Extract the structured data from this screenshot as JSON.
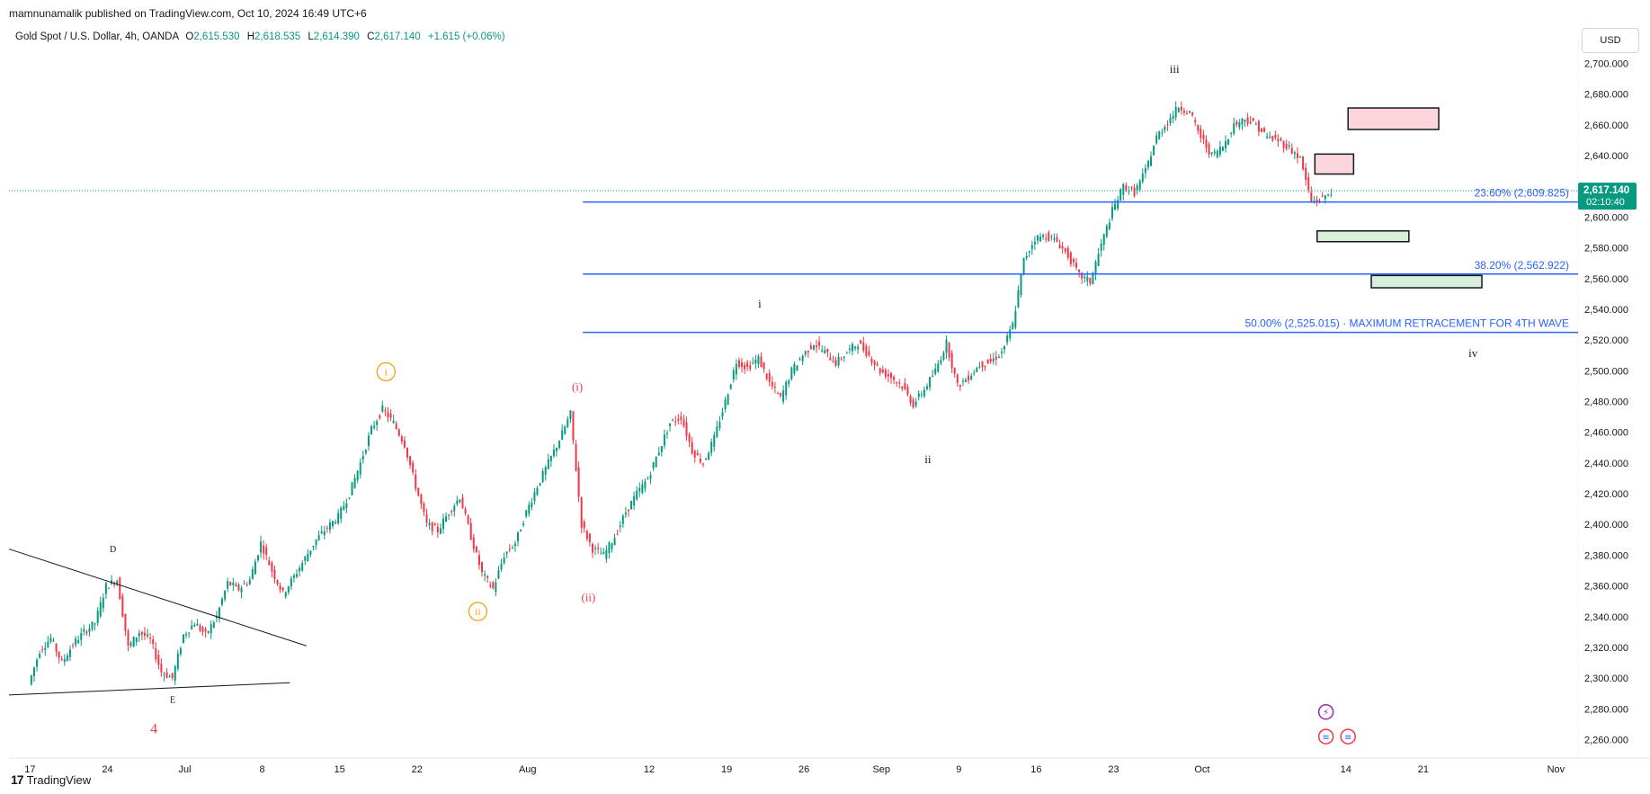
{
  "publisher": "mamnunamalik published on TradingView.com, Oct 10, 2024 16:49 UTC+6",
  "legend": {
    "symbol": "Gold Spot / U.S. Dollar, 4h, OANDA",
    "o_label": "O",
    "o": "2,615.530",
    "h_label": "H",
    "h": "2,618.535",
    "l_label": "L",
    "l": "2,614.390",
    "c_label": "C",
    "c": "2,617.140",
    "change": "+1.615 (+0.06%)"
  },
  "currency_button": "USD",
  "footer_brand": "TradingView",
  "footer_logo_mark": "17",
  "chart_data": {
    "type": "candlestick",
    "colors": {
      "up": "#089981",
      "down": "#f23645",
      "fib": "#2962ff",
      "price_label_bg": "#089981"
    },
    "y_ticks": [
      2260,
      2280,
      2300,
      2320,
      2340,
      2360,
      2380,
      2400,
      2420,
      2440,
      2460,
      2480,
      2500,
      2520,
      2540,
      2560,
      2580,
      2600,
      2620,
      2640,
      2660,
      2680,
      2700
    ],
    "y_tick_labels": [
      "2,260.000",
      "2,280.000",
      "2,300.000",
      "2,320.000",
      "2,340.000",
      "2,360.000",
      "2,380.000",
      "2,400.000",
      "2,420.000",
      "2,440.000",
      "2,460.000",
      "2,480.000",
      "2,500.000",
      "2,520.000",
      "2,540.000",
      "2,560.000",
      "2,580.000",
      "2,600.000",
      "2,620.000",
      "2,640.000",
      "2,660.000",
      "2,680.000",
      "2,700.000"
    ],
    "ylim": [
      2248,
      2712
    ],
    "x_ticks": [
      {
        "day": 0,
        "label": "17"
      },
      {
        "day": 7,
        "label": "24"
      },
      {
        "day": 14,
        "label": "Jul"
      },
      {
        "day": 21,
        "label": "8"
      },
      {
        "day": 28,
        "label": "15"
      },
      {
        "day": 35,
        "label": "22"
      },
      {
        "day": 45,
        "label": "Aug"
      },
      {
        "day": 56,
        "label": "12"
      },
      {
        "day": 63,
        "label": "19"
      },
      {
        "day": 70,
        "label": "26"
      },
      {
        "day": 77,
        "label": "Sep"
      },
      {
        "day": 84,
        "label": "9"
      },
      {
        "day": 91,
        "label": "16"
      },
      {
        "day": 98,
        "label": "23"
      },
      {
        "day": 106,
        "label": "Oct"
      },
      {
        "day": 119,
        "label": "14"
      },
      {
        "day": 126,
        "label": "21"
      },
      {
        "day": 138,
        "label": "Nov"
      }
    ],
    "xlim_days": [
      -1.9,
      140
    ],
    "current_price": {
      "value": 2617.14,
      "label": "2,617.140",
      "countdown": "02:10:40"
    },
    "path_points": [
      [
        0,
        2296
      ],
      [
        1,
        2318
      ],
      [
        2,
        2326
      ],
      [
        3,
        2310
      ],
      [
        4,
        2322
      ],
      [
        5,
        2330
      ],
      [
        6,
        2336
      ],
      [
        7,
        2360
      ],
      [
        8,
        2364
      ],
      [
        9,
        2320
      ],
      [
        10,
        2330
      ],
      [
        11,
        2325
      ],
      [
        12,
        2304
      ],
      [
        13,
        2300
      ],
      [
        14,
        2328
      ],
      [
        15,
        2336
      ],
      [
        16,
        2328
      ],
      [
        17,
        2340
      ],
      [
        18,
        2362
      ],
      [
        19,
        2358
      ],
      [
        20,
        2364
      ],
      [
        21,
        2388
      ],
      [
        22,
        2370
      ],
      [
        23,
        2355
      ],
      [
        24,
        2366
      ],
      [
        25,
        2378
      ],
      [
        26,
        2390
      ],
      [
        27,
        2398
      ],
      [
        28,
        2405
      ],
      [
        29,
        2420
      ],
      [
        30,
        2440
      ],
      [
        31,
        2462
      ],
      [
        32,
        2475
      ],
      [
        33,
        2466
      ],
      [
        34,
        2452
      ],
      [
        35,
        2425
      ],
      [
        36,
        2400
      ],
      [
        37,
        2396
      ],
      [
        38,
        2408
      ],
      [
        39,
        2418
      ],
      [
        40,
        2392
      ],
      [
        41,
        2368
      ],
      [
        42,
        2358
      ],
      [
        43,
        2380
      ],
      [
        44,
        2388
      ],
      [
        45,
        2408
      ],
      [
        46,
        2425
      ],
      [
        47,
        2440
      ],
      [
        48,
        2455
      ],
      [
        49,
        2472
      ],
      [
        50,
        2400
      ],
      [
        51,
        2384
      ],
      [
        52,
        2380
      ],
      [
        53,
        2392
      ],
      [
        54,
        2408
      ],
      [
        55,
        2420
      ],
      [
        56,
        2430
      ],
      [
        57,
        2448
      ],
      [
        58,
        2466
      ],
      [
        59,
        2470
      ],
      [
        60,
        2448
      ],
      [
        61,
        2440
      ],
      [
        62,
        2456
      ],
      [
        63,
        2480
      ],
      [
        64,
        2506
      ],
      [
        65,
        2502
      ],
      [
        66,
        2508
      ],
      [
        67,
        2492
      ],
      [
        68,
        2482
      ],
      [
        69,
        2500
      ],
      [
        70,
        2510
      ],
      [
        71,
        2518
      ],
      [
        72,
        2512
      ],
      [
        73,
        2505
      ],
      [
        74,
        2512
      ],
      [
        75,
        2518
      ],
      [
        76,
        2510
      ],
      [
        77,
        2500
      ],
      [
        78,
        2496
      ],
      [
        79,
        2490
      ],
      [
        80,
        2478
      ],
      [
        81,
        2488
      ],
      [
        82,
        2500
      ],
      [
        83,
        2518
      ],
      [
        84,
        2490
      ],
      [
        85,
        2496
      ],
      [
        86,
        2504
      ],
      [
        87,
        2506
      ],
      [
        88,
        2512
      ],
      [
        89,
        2530
      ],
      [
        90,
        2572
      ],
      [
        91,
        2586
      ],
      [
        92,
        2588
      ],
      [
        93,
        2584
      ],
      [
        94,
        2575
      ],
      [
        95,
        2562
      ],
      [
        96,
        2558
      ],
      [
        97,
        2582
      ],
      [
        98,
        2604
      ],
      [
        99,
        2620
      ],
      [
        100,
        2616
      ],
      [
        101,
        2630
      ],
      [
        102,
        2652
      ],
      [
        103,
        2662
      ],
      [
        104,
        2672
      ],
      [
        105,
        2668
      ],
      [
        106,
        2652
      ],
      [
        107,
        2640
      ],
      [
        108,
        2646
      ],
      [
        109,
        2660
      ],
      [
        110,
        2664
      ],
      [
        111,
        2660
      ],
      [
        112,
        2652
      ],
      [
        113,
        2650
      ],
      [
        114,
        2645
      ],
      [
        115,
        2638
      ],
      [
        116,
        2610
      ],
      [
        117,
        2612
      ],
      [
        117.8,
        2617
      ]
    ],
    "fib_levels": [
      {
        "value": 2609.825,
        "label": "23.60% (2,609.825)",
        "start_day": 50
      },
      {
        "value": 2562.922,
        "label": "38.20% (2,562.922)",
        "start_day": 50
      },
      {
        "value": 2525.015,
        "label": "50.00% (2,525.015) · MAXIMUM RETRACEMENT FOR 4TH WAVE",
        "start_day": 50
      }
    ],
    "trendlines": [
      {
        "name": "triangle-upper-line",
        "p1": [
          -1.9,
          2384
        ],
        "p2": [
          25,
          2321
        ]
      },
      {
        "name": "triangle-lower-line",
        "p1": [
          -1.9,
          2289
        ],
        "p2": [
          23.5,
          2297
        ]
      }
    ],
    "zones": [
      {
        "name": "resistance-zone-upper",
        "kind": "resistance",
        "x1": 119.2,
        "x2": 127.4,
        "y1": 2671,
        "y2": 2657
      },
      {
        "name": "resistance-zone-lower",
        "kind": "resistance",
        "x1": 116.2,
        "x2": 119.7,
        "y1": 2641,
        "y2": 2628
      },
      {
        "name": "support-zone-upper",
        "kind": "support",
        "x1": 116.4,
        "x2": 124.7,
        "y1": 2591,
        "y2": 2584
      },
      {
        "name": "support-zone-lower",
        "kind": "support",
        "x1": 121.3,
        "x2": 131.3,
        "y1": 2562,
        "y2": 2554
      }
    ],
    "wave_labels": [
      {
        "text": "D",
        "day": 7.5,
        "price": 2382,
        "style": "plain-black",
        "size": 10
      },
      {
        "text": "E",
        "day": 12.9,
        "price": 2284,
        "style": "plain-black",
        "size": 10
      },
      {
        "text": "4",
        "day": 11.2,
        "price": 2264,
        "style": "plain-red",
        "size": 16
      },
      {
        "text": "i",
        "day": 32.2,
        "price": 2497,
        "style": "circled-orange",
        "size": 12
      },
      {
        "text": "ii",
        "day": 40.5,
        "price": 2341,
        "style": "circled-orange",
        "size": 12
      },
      {
        "text": "(i)",
        "day": 49.5,
        "price": 2487,
        "style": "paren-red",
        "size": 13
      },
      {
        "text": "(ii)",
        "day": 50.5,
        "price": 2350,
        "style": "paren-red",
        "size": 13
      },
      {
        "text": "i",
        "day": 66,
        "price": 2541,
        "style": "plain-black",
        "size": 13
      },
      {
        "text": "ii",
        "day": 81.2,
        "price": 2440,
        "style": "plain-black",
        "size": 13
      },
      {
        "text": "iii",
        "day": 103.5,
        "price": 2694,
        "style": "plain-black",
        "size": 13
      },
      {
        "text": "iv",
        "day": 130.5,
        "price": 2509,
        "style": "plain-black",
        "size": 13
      }
    ],
    "event_icons": [
      {
        "name": "lightning-event-icon",
        "day": 117.2,
        "price": 2278,
        "glyph": "⚡"
      },
      {
        "name": "us-flag-event-icon-1",
        "day": 117.2,
        "price": 2262,
        "glyph": "≡"
      },
      {
        "name": "us-flag-event-icon-2",
        "day": 119.2,
        "price": 2262,
        "glyph": "≡"
      }
    ]
  }
}
